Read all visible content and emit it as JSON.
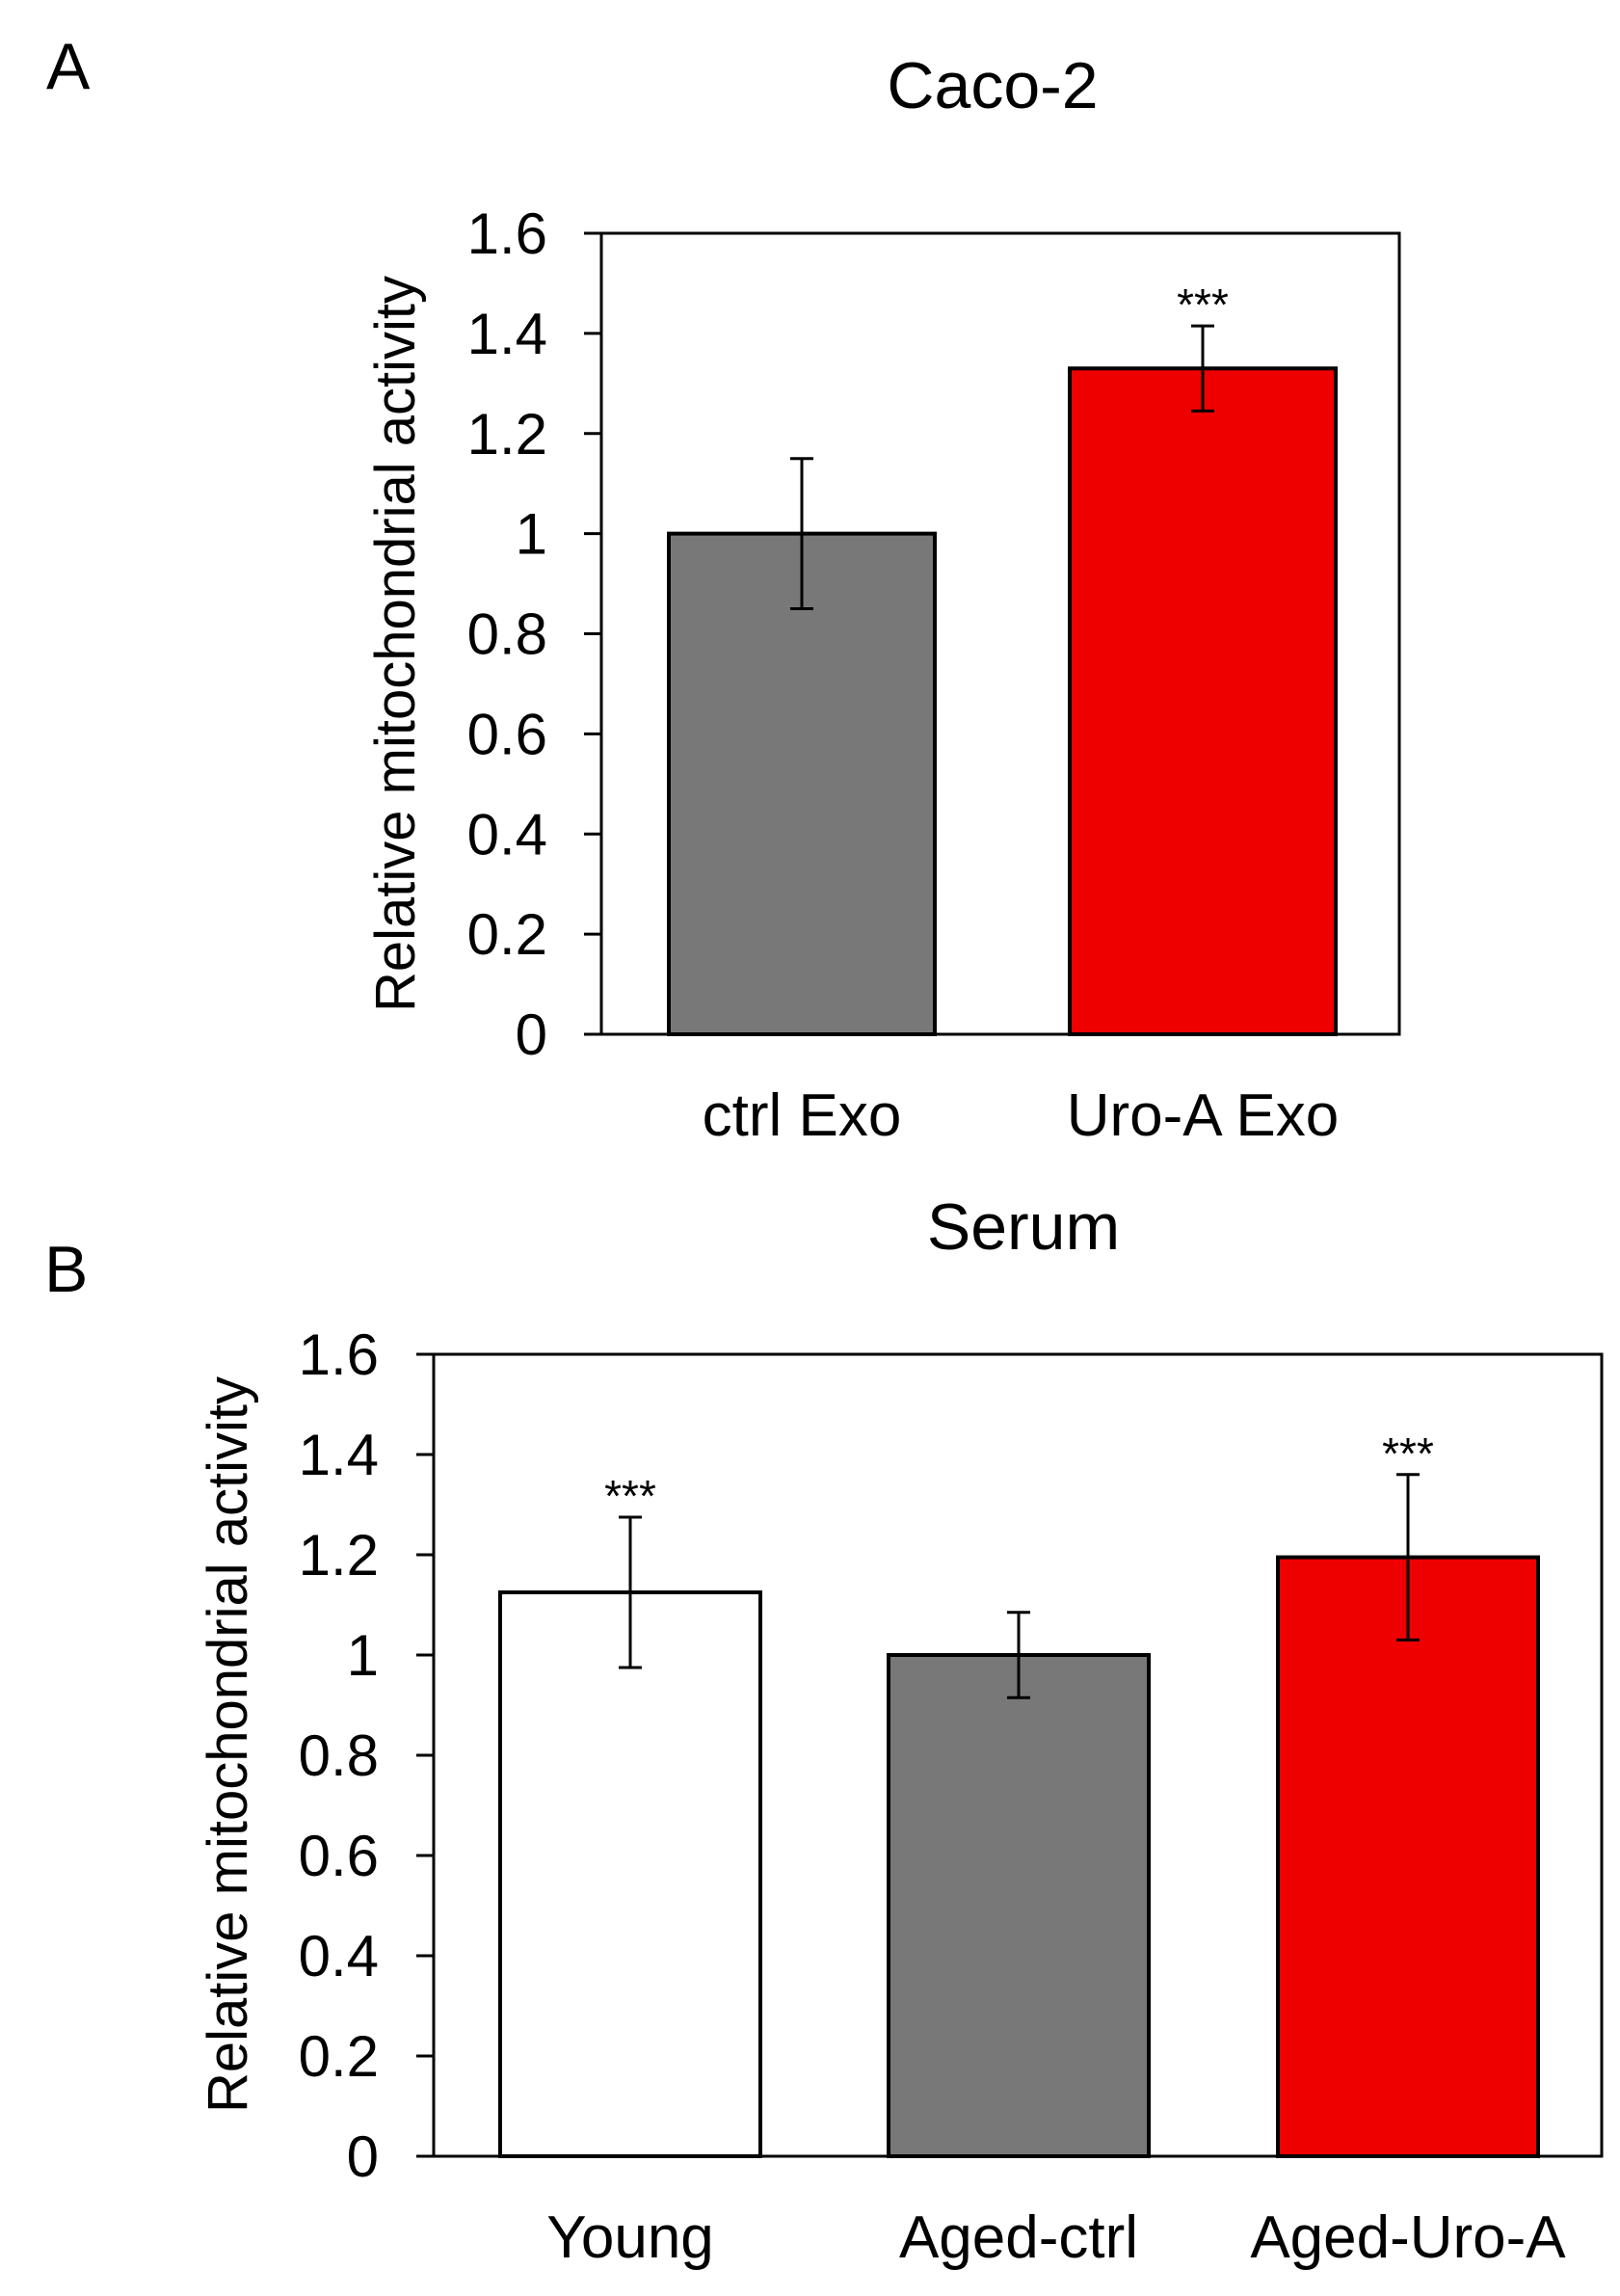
{
  "colors": {
    "gray": "#787878",
    "red": "#ee0000",
    "white": "#ffffff",
    "stroke": "#000000"
  },
  "chart_data": [
    {
      "type": "bar",
      "panel": "A",
      "title": "Caco-2",
      "xlabel": "",
      "ylabel": "Relative mitochondrial activity",
      "ylim": [
        0,
        1.6
      ],
      "yticks": [
        "0",
        "0.2",
        "0.4",
        "0.6",
        "0.8",
        "1",
        "1.2",
        "1.4",
        "1.6"
      ],
      "categories": [
        "ctrl Exo",
        "Uro-A Exo"
      ],
      "values": [
        1.0,
        1.33
      ],
      "errors": [
        0.15,
        0.085
      ],
      "bar_colors": [
        "#787878",
        "#ee0000"
      ],
      "significance": [
        "",
        "***"
      ],
      "grid": false,
      "legend": "none"
    },
    {
      "type": "bar",
      "panel": "B",
      "title": "Serum",
      "xlabel": "",
      "ylabel": "Relative mitochondrial activity",
      "ylim": [
        0,
        1.6
      ],
      "yticks": [
        "0",
        "0.2",
        "0.4",
        "0.6",
        "0.8",
        "1",
        "1.2",
        "1.4",
        "1.6"
      ],
      "categories": [
        "Young",
        "Aged-ctrl",
        "Aged-Uro-A"
      ],
      "values": [
        1.125,
        1.0,
        1.195
      ],
      "errors": [
        0.15,
        0.085,
        0.165
      ],
      "bar_colors": [
        "#ffffff",
        "#787878",
        "#ee0000"
      ],
      "significance": [
        "***",
        "",
        "***"
      ],
      "grid": false,
      "legend": "none"
    }
  ]
}
